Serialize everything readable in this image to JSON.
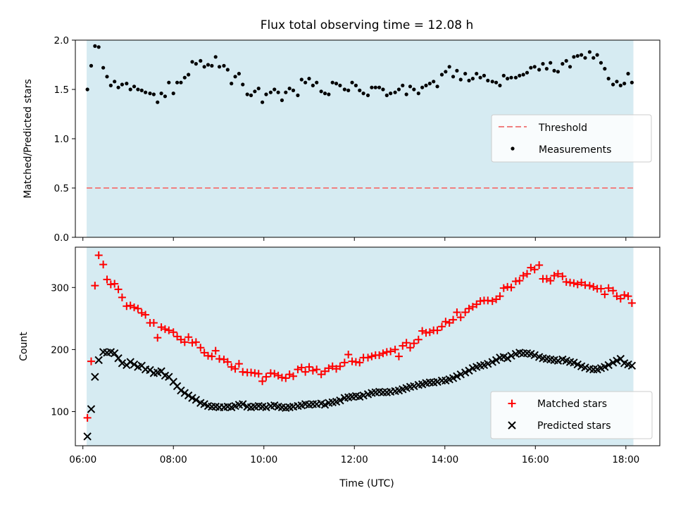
{
  "figure": {
    "title": "Flux total observing time = 12.08 h",
    "background": "#ffffff",
    "observing_window_color": "#add8e6"
  },
  "chart_data": [
    {
      "type": "scatter",
      "title": "Flux total observing time = 12.08 h",
      "xlabel": "",
      "ylabel": "Matched/Predicted stars",
      "xlim": [
        "05:50",
        "18:45"
      ],
      "ylim": [
        0,
        2.0
      ],
      "yticks": [
        0.0,
        0.5,
        1.0,
        1.5,
        2.0
      ],
      "ytick_labels": [
        "0.0",
        "0.5",
        "1.0",
        "1.5",
        "2.0"
      ],
      "xtick_labels_shown": false,
      "observing_window": [
        "06:05",
        "18:10"
      ],
      "legend_position": "center-right",
      "legend": [
        "Threshold",
        "Measurements"
      ],
      "threshold": {
        "name": "Threshold",
        "value": 0.5,
        "color": "#f08080",
        "style": "dashed"
      },
      "measurements": {
        "name": "Measurements",
        "color": "#000000",
        "x": [
          "06:06",
          "06:11",
          "06:16",
          "06:21",
          "06:27",
          "06:32",
          "06:37",
          "06:42",
          "06:47",
          "06:52",
          "06:58",
          "07:03",
          "07:08",
          "07:13",
          "07:18",
          "07:23",
          "07:29",
          "07:34",
          "07:39",
          "07:44",
          "07:49",
          "07:54",
          "08:00",
          "08:05",
          "08:10",
          "08:15",
          "08:20",
          "08:25",
          "08:30",
          "08:36",
          "08:41",
          "08:46",
          "08:51",
          "08:56",
          "09:01",
          "09:07",
          "09:12",
          "09:17",
          "09:22",
          "09:27",
          "09:32",
          "09:38",
          "09:43",
          "09:48",
          "09:53",
          "09:58",
          "10:03",
          "10:09",
          "10:14",
          "10:19",
          "10:24",
          "10:29",
          "10:34",
          "10:39",
          "10:45",
          "10:50",
          "10:55",
          "11:00",
          "11:05",
          "11:10",
          "11:16",
          "11:21",
          "11:26",
          "11:31",
          "11:36",
          "11:41",
          "11:47",
          "11:52",
          "11:57",
          "12:02",
          "12:07",
          "12:12",
          "12:18",
          "12:23",
          "12:28",
          "12:33",
          "12:38",
          "12:43",
          "12:48",
          "12:54",
          "12:59",
          "13:04",
          "13:09",
          "13:14",
          "13:19",
          "13:25",
          "13:30",
          "13:35",
          "13:40",
          "13:45",
          "13:50",
          "13:56",
          "14:01",
          "14:06",
          "14:11",
          "14:16",
          "14:21",
          "14:27",
          "14:32",
          "14:37",
          "14:42",
          "14:47",
          "14:52",
          "14:57",
          "15:03",
          "15:08",
          "15:13",
          "15:18",
          "15:23",
          "15:28",
          "15:34",
          "15:39",
          "15:44",
          "15:49",
          "15:54",
          "15:59",
          "16:05",
          "16:10",
          "16:15",
          "16:20",
          "16:25",
          "16:30",
          "16:36",
          "16:41",
          "16:46",
          "16:51",
          "16:56",
          "17:01",
          "17:06",
          "17:12",
          "17:17",
          "17:22",
          "17:27",
          "17:32",
          "17:37",
          "17:43",
          "17:48",
          "17:53",
          "17:58",
          "18:03",
          "18:08"
        ],
        "y": [
          1.5,
          1.74,
          1.94,
          1.93,
          1.72,
          1.63,
          1.54,
          1.58,
          1.52,
          1.55,
          1.56,
          1.5,
          1.53,
          1.5,
          1.49,
          1.47,
          1.46,
          1.45,
          1.37,
          1.46,
          1.43,
          1.57,
          1.46,
          1.57,
          1.57,
          1.62,
          1.65,
          1.78,
          1.76,
          1.79,
          1.73,
          1.75,
          1.74,
          1.83,
          1.73,
          1.74,
          1.7,
          1.56,
          1.63,
          1.66,
          1.55,
          1.45,
          1.44,
          1.48,
          1.51,
          1.37,
          1.45,
          1.47,
          1.5,
          1.47,
          1.39,
          1.47,
          1.51,
          1.49,
          1.44,
          1.6,
          1.57,
          1.61,
          1.54,
          1.57,
          1.48,
          1.46,
          1.45,
          1.57,
          1.56,
          1.54,
          1.5,
          1.49,
          1.57,
          1.54,
          1.49,
          1.46,
          1.44,
          1.52,
          1.52,
          1.52,
          1.5,
          1.44,
          1.46,
          1.47,
          1.5,
          1.54,
          1.45,
          1.53,
          1.5,
          1.46,
          1.52,
          1.54,
          1.56,
          1.58,
          1.53,
          1.65,
          1.68,
          1.73,
          1.63,
          1.69,
          1.6,
          1.66,
          1.59,
          1.61,
          1.66,
          1.62,
          1.64,
          1.59,
          1.58,
          1.57,
          1.54,
          1.64,
          1.61,
          1.62,
          1.62,
          1.64,
          1.65,
          1.67,
          1.72,
          1.73,
          1.7,
          1.76,
          1.71,
          1.77,
          1.69,
          1.68,
          1.76,
          1.79,
          1.73,
          1.83,
          1.84,
          1.85,
          1.82,
          1.88,
          1.82,
          1.85,
          1.77,
          1.71,
          1.61,
          1.55,
          1.58,
          1.54,
          1.56,
          1.66,
          1.57
        ]
      }
    },
    {
      "type": "scatter",
      "title": "",
      "xlabel": "Time (UTC)",
      "ylabel": "Count",
      "xlim": [
        "05:50",
        "18:45"
      ],
      "ylim": [
        45,
        365
      ],
      "yticks": [
        100,
        200,
        300
      ],
      "ytick_labels": [
        "100",
        "200",
        "300"
      ],
      "xticks": [
        "06:00",
        "08:00",
        "10:00",
        "12:00",
        "14:00",
        "16:00",
        "18:00"
      ],
      "xtick_labels": [
        "06:00",
        "08:00",
        "10:00",
        "12:00",
        "14:00",
        "16:00",
        "18:00"
      ],
      "observing_window": [
        "06:05",
        "18:10"
      ],
      "legend_position": "lower-right",
      "legend": [
        "Matched stars",
        "Predicted stars"
      ],
      "series": [
        {
          "name": "Matched stars",
          "marker": "+",
          "color": "#ff0000",
          "x": [
            "06:06",
            "06:11",
            "06:16",
            "06:21",
            "06:27",
            "06:32",
            "06:37",
            "06:42",
            "06:47",
            "06:52",
            "06:58",
            "07:03",
            "07:08",
            "07:13",
            "07:18",
            "07:23",
            "07:29",
            "07:34",
            "07:39",
            "07:44",
            "07:49",
            "07:54",
            "08:00",
            "08:05",
            "08:10",
            "08:15",
            "08:20",
            "08:25",
            "08:30",
            "08:36",
            "08:41",
            "08:46",
            "08:51",
            "08:56",
            "09:01",
            "09:07",
            "09:12",
            "09:17",
            "09:22",
            "09:27",
            "09:32",
            "09:38",
            "09:43",
            "09:48",
            "09:53",
            "09:58",
            "10:03",
            "10:09",
            "10:14",
            "10:19",
            "10:24",
            "10:29",
            "10:34",
            "10:39",
            "10:45",
            "10:50",
            "10:55",
            "11:00",
            "11:05",
            "11:10",
            "11:16",
            "11:21",
            "11:26",
            "11:31",
            "11:36",
            "11:41",
            "11:47",
            "11:52",
            "11:57",
            "12:02",
            "12:07",
            "12:12",
            "12:18",
            "12:23",
            "12:28",
            "12:33",
            "12:38",
            "12:43",
            "12:48",
            "12:54",
            "12:59",
            "13:04",
            "13:09",
            "13:14",
            "13:19",
            "13:25",
            "13:30",
            "13:35",
            "13:40",
            "13:45",
            "13:50",
            "13:56",
            "14:01",
            "14:06",
            "14:11",
            "14:16",
            "14:21",
            "14:27",
            "14:32",
            "14:37",
            "14:42",
            "14:47",
            "14:52",
            "14:57",
            "15:03",
            "15:08",
            "15:13",
            "15:18",
            "15:23",
            "15:28",
            "15:34",
            "15:39",
            "15:44",
            "15:49",
            "15:54",
            "15:59",
            "16:05",
            "16:10",
            "16:15",
            "16:20",
            "16:25",
            "16:30",
            "16:36",
            "16:41",
            "16:46",
            "16:51",
            "16:56",
            "17:01",
            "17:06",
            "17:12",
            "17:17",
            "17:22",
            "17:27",
            "17:32",
            "17:37",
            "17:43",
            "17:48",
            "17:53",
            "17:58",
            "18:03",
            "18:08"
          ],
          "values": [
            90,
            181,
            303,
            352,
            337,
            313,
            305,
            306,
            297,
            284,
            270,
            271,
            268,
            266,
            259,
            256,
            243,
            243,
            219,
            236,
            233,
            231,
            228,
            221,
            216,
            212,
            220,
            211,
            212,
            203,
            195,
            190,
            189,
            198,
            185,
            184,
            180,
            172,
            169,
            177,
            164,
            163,
            163,
            162,
            161,
            149,
            156,
            162,
            161,
            158,
            155,
            154,
            160,
            157,
            168,
            171,
            164,
            172,
            166,
            168,
            160,
            165,
            170,
            173,
            169,
            173,
            179,
            192,
            181,
            180,
            179,
            187,
            187,
            189,
            191,
            191,
            194,
            196,
            197,
            200,
            189,
            206,
            211,
            203,
            210,
            216,
            230,
            227,
            228,
            231,
            231,
            237,
            245,
            243,
            248,
            260,
            252,
            260,
            266,
            269,
            273,
            278,
            279,
            279,
            278,
            281,
            286,
            299,
            301,
            300,
            310,
            311,
            319,
            322,
            332,
            329,
            336,
            314,
            314,
            311,
            319,
            322,
            318,
            309,
            308,
            307,
            305,
            308,
            304,
            303,
            301,
            298,
            298,
            289,
            299,
            295,
            286,
            282,
            288,
            286,
            275
          ]
        },
        {
          "name": "Predicted stars",
          "marker": "x",
          "color": "#000000",
          "x": [
            "06:06",
            "06:11",
            "06:16",
            "06:21",
            "06:27",
            "06:32",
            "06:37",
            "06:42",
            "06:47",
            "06:52",
            "06:58",
            "07:03",
            "07:08",
            "07:13",
            "07:18",
            "07:23",
            "07:29",
            "07:34",
            "07:39",
            "07:44",
            "07:49",
            "07:54",
            "08:00",
            "08:05",
            "08:10",
            "08:15",
            "08:20",
            "08:25",
            "08:30",
            "08:36",
            "08:41",
            "08:46",
            "08:51",
            "08:56",
            "09:01",
            "09:07",
            "09:12",
            "09:17",
            "09:22",
            "09:27",
            "09:32",
            "09:38",
            "09:43",
            "09:48",
            "09:53",
            "09:58",
            "10:03",
            "10:09",
            "10:14",
            "10:19",
            "10:24",
            "10:29",
            "10:34",
            "10:39",
            "10:45",
            "10:50",
            "10:55",
            "11:00",
            "11:05",
            "11:10",
            "11:16",
            "11:21",
            "11:26",
            "11:31",
            "11:36",
            "11:41",
            "11:47",
            "11:52",
            "11:57",
            "12:02",
            "12:07",
            "12:12",
            "12:18",
            "12:23",
            "12:28",
            "12:33",
            "12:38",
            "12:43",
            "12:48",
            "12:54",
            "12:59",
            "13:04",
            "13:09",
            "13:14",
            "13:19",
            "13:25",
            "13:30",
            "13:35",
            "13:40",
            "13:45",
            "13:50",
            "13:56",
            "14:01",
            "14:06",
            "14:11",
            "14:16",
            "14:21",
            "14:27",
            "14:32",
            "14:37",
            "14:42",
            "14:47",
            "14:52",
            "14:57",
            "15:03",
            "15:08",
            "15:13",
            "15:18",
            "15:23",
            "15:28",
            "15:34",
            "15:39",
            "15:44",
            "15:49",
            "15:54",
            "15:59",
            "16:05",
            "16:10",
            "16:15",
            "16:20",
            "16:25",
            "16:30",
            "16:36",
            "16:41",
            "16:46",
            "16:51",
            "16:56",
            "17:01",
            "17:06",
            "17:12",
            "17:17",
            "17:22",
            "17:27",
            "17:32",
            "17:37",
            "17:43",
            "17:48",
            "17:53",
            "17:58",
            "18:03",
            "18:08"
          ],
          "values": [
            60,
            104,
            156,
            183,
            196,
            195,
            196,
            194,
            186,
            178,
            175,
            180,
            176,
            172,
            174,
            168,
            167,
            162,
            163,
            165,
            158,
            156,
            148,
            141,
            134,
            130,
            126,
            122,
            119,
            114,
            112,
            109,
            108,
            108,
            107,
            107,
            108,
            107,
            109,
            111,
            112,
            108,
            107,
            108,
            109,
            108,
            107,
            109,
            110,
            108,
            107,
            106,
            107,
            108,
            109,
            110,
            112,
            111,
            112,
            112,
            113,
            111,
            114,
            115,
            116,
            118,
            122,
            123,
            124,
            125,
            124,
            126,
            128,
            130,
            131,
            132,
            131,
            131,
            132,
            133,
            134,
            136,
            138,
            140,
            141,
            143,
            144,
            146,
            147,
            147,
            148,
            150,
            150,
            152,
            154,
            157,
            160,
            163,
            166,
            170,
            172,
            174,
            175,
            177,
            180,
            183,
            187,
            188,
            186,
            190,
            193,
            195,
            194,
            194,
            193,
            191,
            188,
            186,
            185,
            184,
            183,
            182,
            184,
            182,
            180,
            179,
            176,
            173,
            171,
            169,
            168,
            168,
            170,
            172,
            175,
            179,
            182,
            185,
            178,
            176,
            174
          ]
        }
      ]
    }
  ]
}
